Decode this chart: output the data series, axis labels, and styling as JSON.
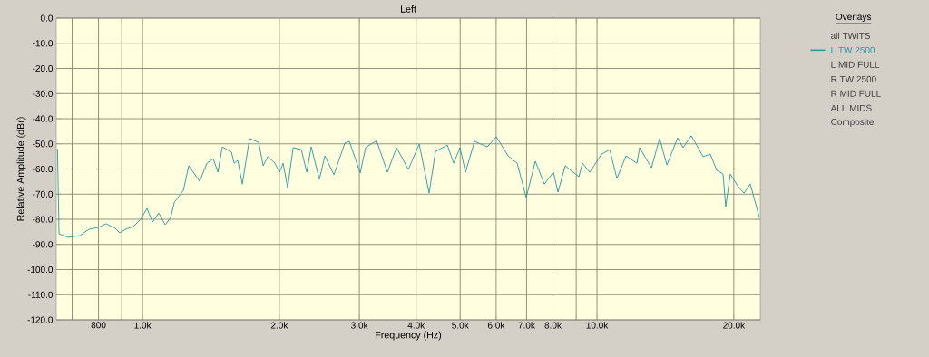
{
  "chart_data": {
    "type": "line",
    "title": "Left",
    "xlabel": "Frequency (Hz)",
    "ylabel": "Relative Amplitude (dBr)",
    "legend_title": "Overlays",
    "log": "x",
    "grid": true,
    "legend": "right",
    "marker": "none",
    "line_style": "solid",
    "xlim": [
      646,
      22870
    ],
    "ylim": [
      -120,
      0
    ],
    "xticks": [
      {
        "value": 700,
        "label": null
      },
      {
        "value": 800,
        "label": "800"
      },
      {
        "value": 900,
        "label": null
      },
      {
        "value": 1000,
        "label": "1.0k"
      },
      {
        "value": 2000,
        "label": "2.0k"
      },
      {
        "value": 3000,
        "label": "3.0k"
      },
      {
        "value": 4000,
        "label": "4.0k"
      },
      {
        "value": 5000,
        "label": "5.0k"
      },
      {
        "value": 6000,
        "label": "6.0k"
      },
      {
        "value": 7000,
        "label": "7.0k"
      },
      {
        "value": 8000,
        "label": "8.0k"
      },
      {
        "value": 9000,
        "label": null
      },
      {
        "value": 10000,
        "label": "10.0k"
      },
      {
        "value": 20000,
        "label": "20.0k"
      }
    ],
    "yticks": [
      {
        "value": 0,
        "label": "0.0"
      },
      {
        "value": -10,
        "label": "-10.0"
      },
      {
        "value": -20,
        "label": "-20.0"
      },
      {
        "value": -30,
        "label": "-30.0"
      },
      {
        "value": -40,
        "label": "-40.0"
      },
      {
        "value": -50,
        "label": "-50.0"
      },
      {
        "value": -60,
        "label": "-60.0"
      },
      {
        "value": -70,
        "label": "-70.0"
      },
      {
        "value": -80,
        "label": "-80.0"
      },
      {
        "value": -90,
        "label": "-90.0"
      },
      {
        "value": -100,
        "label": "-100.0"
      },
      {
        "value": -110,
        "label": "-110.0"
      },
      {
        "value": -120,
        "label": "-120.0"
      }
    ],
    "x": [
      650,
      655,
      686,
      728,
      762,
      798,
      832,
      871,
      891,
      917,
      955,
      991,
      1023,
      1052,
      1086,
      1122,
      1153,
      1175,
      1230,
      1264,
      1336,
      1386,
      1431,
      1465,
      1498,
      1569,
      1591,
      1620,
      1658,
      1720,
      1801,
      1843,
      1886,
      1956,
      2002,
      2039,
      2086,
      2145,
      2236,
      2298,
      2351,
      2450,
      2519,
      2638,
      2787,
      2852,
      3013,
      3097,
      3273,
      3458,
      3622,
      3845,
      4063,
      4272,
      4413,
      4685,
      4838,
      4996,
      5136,
      5377,
      5735,
      6004,
      6375,
      6674,
      6987,
      7317,
      7660,
      8021,
      8207,
      8513,
      9122,
      9291,
      9639,
      10233,
      10665,
      11063,
      11584,
      12240,
      12410,
      13180,
      13730,
      14250,
      15050,
      15470,
      16130,
      17120,
      17760,
      18340,
      18940,
      19200,
      19650,
      20390,
      21060,
      21740,
      22770
    ],
    "series": [
      {
        "name": "L TW 2500",
        "color": "#2a9aa0",
        "values": [
          -52,
          -85.8,
          -87.2,
          -86.5,
          -84.0,
          -83.3,
          -81.8,
          -83.6,
          -85.4,
          -84.0,
          -82.9,
          -80.0,
          -75.7,
          -81.1,
          -77.5,
          -82.2,
          -79.3,
          -73.2,
          -68.5,
          -58.7,
          -64.9,
          -57.7,
          -55.9,
          -61.3,
          -51.2,
          -53.3,
          -57.7,
          -56.6,
          -66.0,
          -47.9,
          -49.4,
          -58.7,
          -55.1,
          -57.7,
          -61.3,
          -57.7,
          -67.4,
          -51.5,
          -52.3,
          -61.3,
          -51.2,
          -64.1,
          -54.8,
          -62.3,
          -49.7,
          -49.0,
          -61.6,
          -51.5,
          -48.7,
          -61.3,
          -51.5,
          -60.2,
          -50.1,
          -69.6,
          -53.0,
          -50.5,
          -57.7,
          -51.5,
          -61.3,
          -49.0,
          -51.2,
          -47.2,
          -54.8,
          -57.7,
          -71.4,
          -56.9,
          -66.0,
          -61.3,
          -69.2,
          -58.7,
          -63.1,
          -57.7,
          -61.3,
          -54.1,
          -52.3,
          -63.8,
          -54.8,
          -57.7,
          -51.5,
          -59.5,
          -47.9,
          -58.4,
          -47.6,
          -51.5,
          -46.8,
          -55.1,
          -54.1,
          -60.5,
          -62.0,
          -75.0,
          -62.0,
          -66.7,
          -69.6,
          -66.0,
          -79.3
        ]
      }
    ],
    "annotations": [
      "all TWITS",
      "L MID FULL",
      "R TW 2500",
      "R MID FULL",
      "ALL MIDS",
      "Composite"
    ]
  }
}
